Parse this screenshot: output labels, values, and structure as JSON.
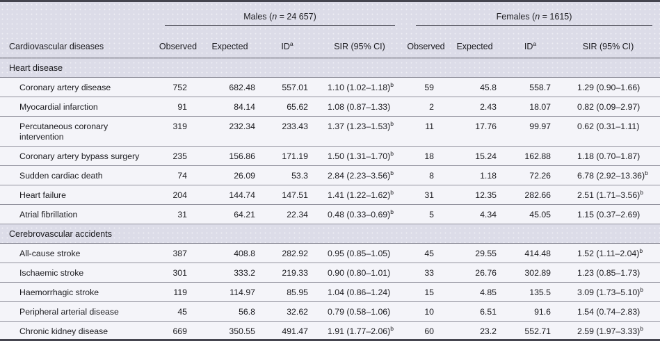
{
  "colors": {
    "page_background": "#dcdce8",
    "data_row_background": "#f4f4f9",
    "frame_border": "#45454f",
    "row_separator": "#90909c",
    "text": "#1b1b1f"
  },
  "table": {
    "col_header_left": "Cardiovascular diseases",
    "groups": {
      "males": {
        "prefix": "Males (",
        "n": "n",
        "suffix": " = 24 657)"
      },
      "females": {
        "prefix": "Females (",
        "n": "n",
        "suffix": " = 1615)"
      }
    },
    "columns": {
      "observed": "Observed",
      "expected": "Expected",
      "id": "ID",
      "id_sup": "a",
      "sir": "SIR (95% CI)"
    },
    "rows": [
      {
        "type": "section",
        "label": "Heart disease"
      },
      {
        "type": "data",
        "label": "Coronary artery disease",
        "m_obs": "752",
        "m_exp": "682.48",
        "m_id": "557.01",
        "m_sir": "1.10 (1.02–1.18)",
        "m_sup": "b",
        "f_obs": "59",
        "f_exp": "45.8",
        "f_id": "558.7",
        "f_sir": "1.29 (0.90–1.66)",
        "f_sup": ""
      },
      {
        "type": "data",
        "label": "Myocardial infarction",
        "m_obs": "91",
        "m_exp": "84.14",
        "m_id": "65.62",
        "m_sir": "1.08 (0.87–1.33)",
        "m_sup": "",
        "f_obs": "2",
        "f_exp": "2.43",
        "f_id": "18.07",
        "f_sir": "0.82 (0.09–2.97)",
        "f_sup": ""
      },
      {
        "type": "data",
        "label": "Percutaneous coronary intervention",
        "m_obs": "319",
        "m_exp": "232.34",
        "m_id": "233.43",
        "m_sir": "1.37 (1.23–1.53)",
        "m_sup": "b",
        "f_obs": "11",
        "f_exp": "17.76",
        "f_id": "99.97",
        "f_sir": "0.62 (0.31–1.11)",
        "f_sup": ""
      },
      {
        "type": "data",
        "label": "Coronary artery bypass surgery",
        "m_obs": "235",
        "m_exp": "156.86",
        "m_id": "171.19",
        "m_sir": "1.50 (1.31–1.70)",
        "m_sup": "b",
        "f_obs": "18",
        "f_exp": "15.24",
        "f_id": "162.88",
        "f_sir": "1.18 (0.70–1.87)",
        "f_sup": ""
      },
      {
        "type": "data",
        "label": "Sudden cardiac death",
        "m_obs": "74",
        "m_exp": "26.09",
        "m_id": "53.3",
        "m_sir": "2.84 (2.23–3.56)",
        "m_sup": "b",
        "f_obs": "8",
        "f_exp": "1.18",
        "f_id": "72.26",
        "f_sir": "6.78 (2.92–13.36)",
        "f_sup": "b"
      },
      {
        "type": "data",
        "label": "Heart failure",
        "m_obs": "204",
        "m_exp": "144.74",
        "m_id": "147.51",
        "m_sir": "1.41 (1.22–1.62)",
        "m_sup": "b",
        "f_obs": "31",
        "f_exp": "12.35",
        "f_id": "282.66",
        "f_sir": "2.51 (1.71–3.56)",
        "f_sup": "b"
      },
      {
        "type": "data",
        "label": "Atrial fibrillation",
        "m_obs": "31",
        "m_exp": "64.21",
        "m_id": "22.34",
        "m_sir": "0.48 (0.33–0.69)",
        "m_sup": "b",
        "f_obs": "5",
        "f_exp": "4.34",
        "f_id": "45.05",
        "f_sir": "1.15 (0.37–2.69)",
        "f_sup": ""
      },
      {
        "type": "section",
        "label": "Cerebrovascular accidents"
      },
      {
        "type": "data",
        "label": "All-cause stroke",
        "m_obs": "387",
        "m_exp": "408.8",
        "m_id": "282.92",
        "m_sir": "0.95 (0.85–1.05)",
        "m_sup": "",
        "f_obs": "45",
        "f_exp": "29.55",
        "f_id": "414.48",
        "f_sir": "1.52 (1.11–2.04)",
        "f_sup": "b"
      },
      {
        "type": "data",
        "label": "Ischaemic stroke",
        "m_obs": "301",
        "m_exp": "333.2",
        "m_id": "219.33",
        "m_sir": "0.90 (0.80–1.01)",
        "m_sup": "",
        "f_obs": "33",
        "f_exp": "26.76",
        "f_id": "302.89",
        "f_sir": "1.23 (0.85–1.73)",
        "f_sup": ""
      },
      {
        "type": "data",
        "label": "Haemorrhagic stroke",
        "m_obs": "119",
        "m_exp": "114.97",
        "m_id": "85.95",
        "m_sir": "1.04 (0.86–1.24)",
        "m_sup": "",
        "f_obs": "15",
        "f_exp": "4.85",
        "f_id": "135.5",
        "f_sir": "3.09 (1.73–5.10)",
        "f_sup": "b"
      },
      {
        "type": "data",
        "label": "Peripheral arterial disease",
        "m_obs": "45",
        "m_exp": "56.8",
        "m_id": "32.62",
        "m_sir": "0.79 (0.58–1.06)",
        "m_sup": "",
        "f_obs": "10",
        "f_exp": "6.51",
        "f_id": "91.6",
        "f_sir": "1.54 (0.74–2.83)",
        "f_sup": ""
      },
      {
        "type": "data",
        "label": "Chronic kidney disease",
        "m_obs": "669",
        "m_exp": "350.55",
        "m_id": "491.47",
        "m_sir": "1.91 (1.77–2.06)",
        "m_sup": "b",
        "f_obs": "60",
        "f_exp": "23.2",
        "f_id": "552.71",
        "f_sir": "2.59 (1.97–3.33)",
        "f_sup": "b"
      }
    ]
  }
}
